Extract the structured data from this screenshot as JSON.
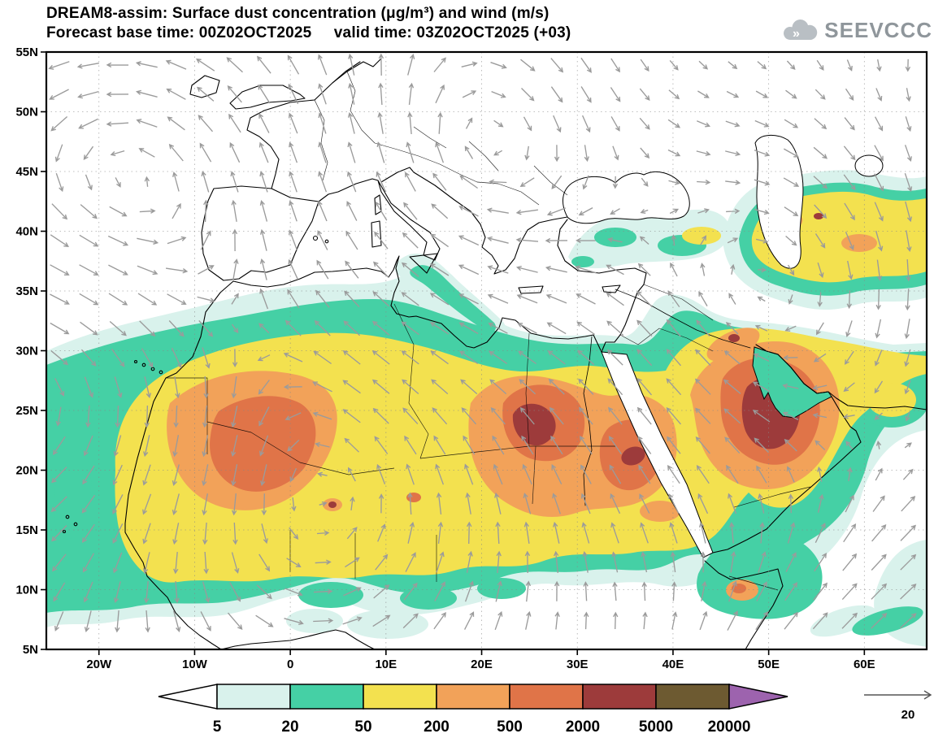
{
  "header": {
    "title_line1": "DREAM8-assim: Surface dust concentration (μg/m³) and wind (m/s)",
    "title_line2": "Forecast base time: 00Z02OCT2025     valid time: 03Z02OCT2025 (+03)",
    "logo_text": "SEEVCCC"
  },
  "chart_data": {
    "type": "heatmap",
    "title": "DREAM8-assim: Surface dust concentration (μg/m³) and wind (m/s)",
    "model": "DREAM8-assim",
    "variable": "Surface dust concentration",
    "units": "μg/m³",
    "overlay": "wind",
    "overlay_units": "m/s",
    "forecast_base_time": "00Z02OCT2025",
    "valid_time": "03Z02OCT2025",
    "lead_hours": "+03",
    "map_extent": {
      "lon_min": -25.5,
      "lon_max": 66.5,
      "lat_min": 5,
      "lat_max": 55
    },
    "grid": {
      "lat_step": 5,
      "lon_step": 10,
      "style": "dotted"
    },
    "lat_ticks": [
      {
        "lat": 55,
        "label": "55N"
      },
      {
        "lat": 50,
        "label": "50N"
      },
      {
        "lat": 45,
        "label": "45N"
      },
      {
        "lat": 40,
        "label": "40N"
      },
      {
        "lat": 35,
        "label": "35N"
      },
      {
        "lat": 30,
        "label": "30N"
      },
      {
        "lat": 25,
        "label": "25N"
      },
      {
        "lat": 20,
        "label": "20N"
      },
      {
        "lat": 15,
        "label": "15N"
      },
      {
        "lat": 10,
        "label": "10N"
      },
      {
        "lat": 5,
        "label": "5N"
      }
    ],
    "lon_ticks": [
      {
        "lon": -20,
        "label": "20W"
      },
      {
        "lon": -10,
        "label": "10W"
      },
      {
        "lon": 0,
        "label": "0"
      },
      {
        "lon": 10,
        "label": "10E"
      },
      {
        "lon": 20,
        "label": "20E"
      },
      {
        "lon": 30,
        "label": "30E"
      },
      {
        "lon": 40,
        "label": "40E"
      },
      {
        "lon": 50,
        "label": "50E"
      },
      {
        "lon": 60,
        "label": "60E"
      }
    ],
    "colorbar": {
      "boundary_labels": [
        "5",
        "20",
        "50",
        "200",
        "500",
        "2000",
        "5000",
        "20000"
      ],
      "segments": [
        {
          "range": "< 5",
          "color": "#ffffff",
          "shape": "arrow-left"
        },
        {
          "range": "5-20",
          "color": "#d9f2ec"
        },
        {
          "range": "20-50",
          "color": "#45d0a5"
        },
        {
          "range": "50-200",
          "color": "#f3e14f"
        },
        {
          "range": "200-500",
          "color": "#f2a259"
        },
        {
          "range": "500-2000",
          "color": "#e07448"
        },
        {
          "range": "2000-5000",
          "color": "#9d3b3b"
        },
        {
          "range": "5000-20000",
          "color": "#6d5a31"
        },
        {
          "range": "> 20000",
          "color": "#9d63ae",
          "shape": "arrow-right"
        }
      ]
    },
    "wind_reference": {
      "label": "20",
      "units": "m/s"
    },
    "dust_hotspots": [
      {
        "area": "central Sahara (SE Libya / NW Sudan)",
        "level": "2000-5000"
      },
      {
        "area": "central Saudi Arabia / Persian Gulf",
        "level": "2000-5000"
      },
      {
        "area": "western Sahara (Mauritania / Mali / Algeria)",
        "level": "500-2000"
      },
      {
        "area": "Caucasus / Caspian lowland",
        "level": "200-2000"
      }
    ]
  }
}
